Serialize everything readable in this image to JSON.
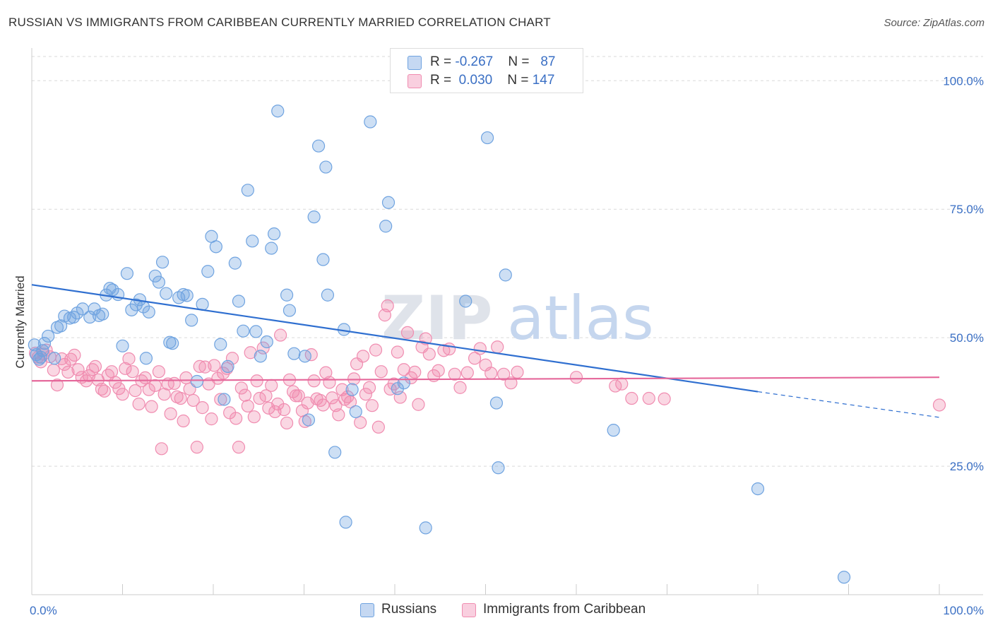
{
  "title": "RUSSIAN VS IMMIGRANTS FROM CARIBBEAN CURRENTLY MARRIED CORRELATION CHART",
  "source": "Source: ZipAtlas.com",
  "watermark": {
    "part1": "ZIP",
    "part2": "atlas"
  },
  "colors": {
    "blue": "#6fa3e0",
    "blue_line": "#2f6fd0",
    "pink": "#f08cb0",
    "pink_line": "#e5679a",
    "tick": "#3a6fc4"
  },
  "legend": {
    "rows": [
      {
        "r_label": "R = ",
        "r_value": "-0.267",
        "n_label": "N = ",
        "n_value": "87"
      },
      {
        "r_label": "R = ",
        "r_value": "0.030",
        "n_label": "N = ",
        "n_value": "147"
      }
    ]
  },
  "bottom_legend": [
    "Russians",
    "Immigrants from Caribbean"
  ],
  "chart_data": {
    "type": "scatter",
    "title": "RUSSIAN VS IMMIGRANTS FROM CARIBBEAN CURRENTLY MARRIED CORRELATION CHART",
    "ylabel": "Currently Married",
    "xlabel": "",
    "x_ticks": [
      "0.0%",
      "100.0%"
    ],
    "y_ticks": [
      "100.0%",
      "75.0%",
      "50.0%",
      "25.0%"
    ],
    "xlim": [
      0,
      100
    ],
    "ylim": [
      0,
      100
    ],
    "grid": "horizontal dashed",
    "legend_placement": "top-center",
    "series": [
      {
        "name": "Russians",
        "r": -0.267,
        "n": 87,
        "trend": {
          "x": [
            0,
            80,
            100
          ],
          "y": [
            60.3,
            39.5,
            34.5
          ]
        },
        "points": [
          [
            0.3,
            48.6
          ],
          [
            0.5,
            46.7
          ],
          [
            0.8,
            45.8
          ],
          [
            1.0,
            46.2
          ],
          [
            1.2,
            47.5
          ],
          [
            1.4,
            48.9
          ],
          [
            1.8,
            50.3
          ],
          [
            2.5,
            46.0
          ],
          [
            2.8,
            52.0
          ],
          [
            3.2,
            52.3
          ],
          [
            3.6,
            54.2
          ],
          [
            4.2,
            53.8
          ],
          [
            4.6,
            54.0
          ],
          [
            5.0,
            54.8
          ],
          [
            5.6,
            55.6
          ],
          [
            6.4,
            54.0
          ],
          [
            6.9,
            55.6
          ],
          [
            7.4,
            54.3
          ],
          [
            7.8,
            54.6
          ],
          [
            8.2,
            58.3
          ],
          [
            8.6,
            59.6
          ],
          [
            8.9,
            59.3
          ],
          [
            9.5,
            58.4
          ],
          [
            10.0,
            48.4
          ],
          [
            10.5,
            62.5
          ],
          [
            11.0,
            55.4
          ],
          [
            11.5,
            56.4
          ],
          [
            11.9,
            57.4
          ],
          [
            12.3,
            56.0
          ],
          [
            12.6,
            46.0
          ],
          [
            12.9,
            55.0
          ],
          [
            13.6,
            62.0
          ],
          [
            14.0,
            60.8
          ],
          [
            14.4,
            64.7
          ],
          [
            14.8,
            58.6
          ],
          [
            15.2,
            49.1
          ],
          [
            15.5,
            48.9
          ],
          [
            16.2,
            57.8
          ],
          [
            16.7,
            58.4
          ],
          [
            17.1,
            58.2
          ],
          [
            17.6,
            53.4
          ],
          [
            18.2,
            41.5
          ],
          [
            18.8,
            56.5
          ],
          [
            19.4,
            62.9
          ],
          [
            19.8,
            69.7
          ],
          [
            20.3,
            67.7
          ],
          [
            20.8,
            48.7
          ],
          [
            21.2,
            38.0
          ],
          [
            21.6,
            44.4
          ],
          [
            22.4,
            64.5
          ],
          [
            22.8,
            57.1
          ],
          [
            23.3,
            51.3
          ],
          [
            23.8,
            78.7
          ],
          [
            24.3,
            68.8
          ],
          [
            24.7,
            51.2
          ],
          [
            25.2,
            46.4
          ],
          [
            25.9,
            49.2
          ],
          [
            26.4,
            67.4
          ],
          [
            26.7,
            70.2
          ],
          [
            27.1,
            94.1
          ],
          [
            28.1,
            58.3
          ],
          [
            28.4,
            55.3
          ],
          [
            28.9,
            46.9
          ],
          [
            30.1,
            46.4
          ],
          [
            30.5,
            34.0
          ],
          [
            31.1,
            73.5
          ],
          [
            31.6,
            87.3
          ],
          [
            32.1,
            65.2
          ],
          [
            32.4,
            83.2
          ],
          [
            32.6,
            58.3
          ],
          [
            33.4,
            27.7
          ],
          [
            34.4,
            51.6
          ],
          [
            34.6,
            14.1
          ],
          [
            35.3,
            39.9
          ],
          [
            35.7,
            35.6
          ],
          [
            37.3,
            92.0
          ],
          [
            39.0,
            71.7
          ],
          [
            39.3,
            76.3
          ],
          [
            40.3,
            40.1
          ],
          [
            41.0,
            41.2
          ],
          [
            43.4,
            13.0
          ],
          [
            47.8,
            57.1
          ],
          [
            50.2,
            88.9
          ],
          [
            51.2,
            37.3
          ],
          [
            51.4,
            24.7
          ],
          [
            52.2,
            62.2
          ],
          [
            64.1,
            32.0
          ],
          [
            80.0,
            20.6
          ],
          [
            89.5,
            3.4
          ]
        ]
      },
      {
        "name": "Immigrants from Caribbean",
        "r": 0.03,
        "n": 147,
        "trend": {
          "x": [
            0,
            100
          ],
          "y": [
            41.6,
            42.3
          ]
        },
        "points": [
          [
            0.4,
            47.0
          ],
          [
            0.7,
            46.2
          ],
          [
            1.0,
            45.3
          ],
          [
            1.3,
            46.8
          ],
          [
            1.6,
            47.6
          ],
          [
            2.0,
            46.3
          ],
          [
            2.4,
            43.7
          ],
          [
            2.8,
            40.8
          ],
          [
            3.3,
            45.9
          ],
          [
            3.6,
            44.8
          ],
          [
            4.0,
            43.3
          ],
          [
            4.3,
            45.8
          ],
          [
            4.7,
            46.6
          ],
          [
            5.1,
            43.8
          ],
          [
            5.5,
            42.3
          ],
          [
            6.0,
            41.6
          ],
          [
            6.3,
            42.6
          ],
          [
            6.7,
            43.8
          ],
          [
            7.0,
            44.4
          ],
          [
            7.3,
            41.8
          ],
          [
            7.7,
            40.0
          ],
          [
            8.0,
            39.6
          ],
          [
            8.4,
            42.7
          ],
          [
            8.8,
            43.4
          ],
          [
            9.2,
            41.3
          ],
          [
            9.6,
            40.1
          ],
          [
            10.0,
            39.0
          ],
          [
            10.3,
            44.0
          ],
          [
            10.7,
            45.9
          ],
          [
            11.1,
            43.4
          ],
          [
            11.4,
            39.7
          ],
          [
            11.8,
            37.1
          ],
          [
            12.1,
            41.6
          ],
          [
            12.5,
            42.2
          ],
          [
            12.9,
            39.9
          ],
          [
            13.2,
            36.6
          ],
          [
            13.6,
            40.7
          ],
          [
            14.0,
            43.4
          ],
          [
            14.3,
            28.4
          ],
          [
            14.6,
            39.0
          ],
          [
            15.0,
            41.0
          ],
          [
            15.3,
            35.2
          ],
          [
            15.7,
            41.1
          ],
          [
            16.0,
            38.5
          ],
          [
            16.4,
            38.2
          ],
          [
            16.7,
            33.8
          ],
          [
            17.0,
            42.2
          ],
          [
            17.4,
            40.0
          ],
          [
            17.8,
            37.8
          ],
          [
            18.2,
            28.7
          ],
          [
            18.5,
            44.4
          ],
          [
            18.8,
            36.4
          ],
          [
            19.1,
            44.3
          ],
          [
            19.5,
            41.0
          ],
          [
            19.8,
            34.2
          ],
          [
            20.1,
            44.6
          ],
          [
            20.5,
            42.1
          ],
          [
            20.8,
            38.0
          ],
          [
            21.1,
            43.1
          ],
          [
            21.5,
            44.0
          ],
          [
            21.8,
            35.4
          ],
          [
            22.1,
            46.0
          ],
          [
            22.5,
            34.3
          ],
          [
            22.8,
            28.7
          ],
          [
            23.1,
            40.2
          ],
          [
            23.5,
            38.8
          ],
          [
            23.8,
            36.7
          ],
          [
            24.1,
            47.1
          ],
          [
            24.5,
            34.6
          ],
          [
            24.8,
            41.6
          ],
          [
            25.1,
            38.2
          ],
          [
            25.5,
            48.0
          ],
          [
            25.8,
            38.7
          ],
          [
            26.1,
            36.3
          ],
          [
            26.4,
            40.7
          ],
          [
            26.8,
            35.6
          ],
          [
            27.1,
            37.1
          ],
          [
            27.4,
            50.5
          ],
          [
            27.8,
            36.0
          ],
          [
            28.1,
            33.4
          ],
          [
            28.4,
            41.8
          ],
          [
            28.8,
            39.5
          ],
          [
            29.1,
            38.7
          ],
          [
            29.4,
            38.7
          ],
          [
            29.8,
            35.8
          ],
          [
            30.1,
            33.7
          ],
          [
            30.4,
            37.3
          ],
          [
            30.8,
            46.7
          ],
          [
            31.1,
            41.6
          ],
          [
            31.4,
            38.1
          ],
          [
            31.8,
            37.8
          ],
          [
            32.1,
            36.9
          ],
          [
            32.4,
            43.2
          ],
          [
            32.8,
            41.3
          ],
          [
            33.1,
            38.3
          ],
          [
            33.5,
            36.8
          ],
          [
            33.8,
            35.0
          ],
          [
            34.2,
            39.9
          ],
          [
            34.5,
            38.0
          ],
          [
            34.8,
            38.5
          ],
          [
            35.1,
            37.5
          ],
          [
            35.5,
            42.0
          ],
          [
            35.8,
            44.9
          ],
          [
            36.2,
            33.5
          ],
          [
            36.5,
            46.4
          ],
          [
            36.8,
            39.0
          ],
          [
            37.2,
            40.3
          ],
          [
            37.5,
            36.8
          ],
          [
            37.9,
            47.6
          ],
          [
            38.2,
            32.6
          ],
          [
            38.5,
            43.4
          ],
          [
            38.9,
            54.4
          ],
          [
            39.2,
            56.2
          ],
          [
            39.5,
            40.0
          ],
          [
            39.9,
            41.0
          ],
          [
            40.3,
            47.2
          ],
          [
            40.6,
            38.4
          ],
          [
            41.0,
            43.8
          ],
          [
            41.4,
            51.0
          ],
          [
            41.8,
            42.2
          ],
          [
            42.2,
            43.3
          ],
          [
            42.6,
            37.0
          ],
          [
            43.0,
            48.2
          ],
          [
            43.4,
            49.8
          ],
          [
            43.8,
            46.8
          ],
          [
            44.3,
            42.6
          ],
          [
            44.8,
            43.6
          ],
          [
            45.4,
            47.5
          ],
          [
            46.0,
            47.8
          ],
          [
            46.6,
            42.9
          ],
          [
            47.2,
            40.3
          ],
          [
            48.0,
            43.2
          ],
          [
            48.8,
            46.0
          ],
          [
            49.4,
            47.9
          ],
          [
            50.0,
            44.7
          ],
          [
            50.6,
            43.1
          ],
          [
            51.3,
            48.2
          ],
          [
            52.0,
            42.9
          ],
          [
            52.8,
            41.2
          ],
          [
            53.5,
            43.3
          ],
          [
            60.0,
            42.3
          ],
          [
            64.3,
            40.6
          ],
          [
            65.0,
            41.0
          ],
          [
            66.1,
            38.2
          ],
          [
            68.0,
            38.2
          ],
          [
            69.7,
            38.1
          ],
          [
            100.0,
            36.9
          ]
        ]
      }
    ]
  }
}
